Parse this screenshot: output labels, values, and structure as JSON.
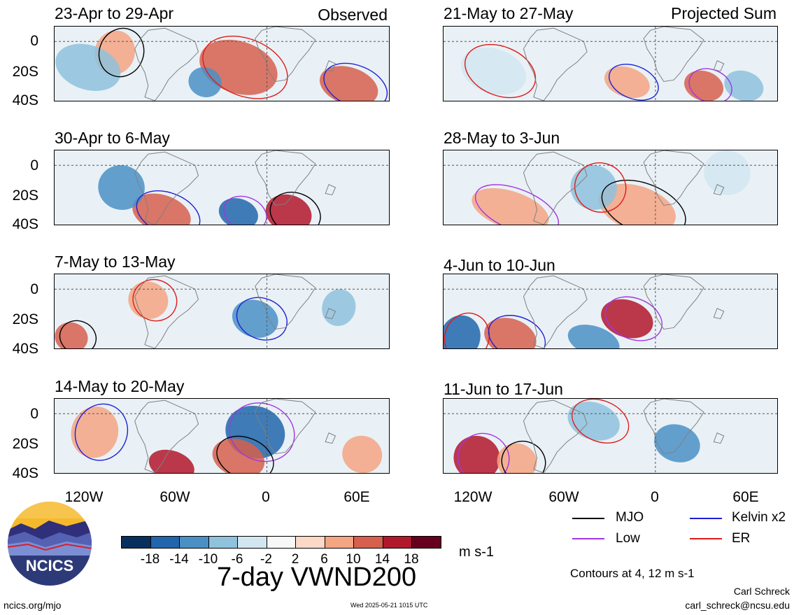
{
  "panels": [
    {
      "title": "23-Apr to 29-Apr",
      "label": "Observed"
    },
    {
      "title": "21-May to 27-May",
      "label": "Projected Sum"
    },
    {
      "title": "30-Apr to 6-May",
      "label": ""
    },
    {
      "title": "28-May to 3-Jun",
      "label": ""
    },
    {
      "title": "7-May to 13-May",
      "label": ""
    },
    {
      "title": "4-Jun to 10-Jun",
      "label": ""
    },
    {
      "title": "14-May to 20-May",
      "label": ""
    },
    {
      "title": "11-Jun to 17-Jun",
      "label": ""
    }
  ],
  "lat_labels": [
    "0",
    "20S",
    "40S"
  ],
  "lon_labels": [
    "120W",
    "60W",
    "0",
    "60E"
  ],
  "colorbar": {
    "colors": [
      "#08305f",
      "#2166ac",
      "#4a90c5",
      "#8ec2dd",
      "#d2e6f0",
      "#f7f7f7",
      "#fbd9c6",
      "#f4a582",
      "#d6604d",
      "#b2182b",
      "#67001f"
    ],
    "ticks": [
      "-18",
      "-14",
      "-10",
      "-6",
      "-2",
      "2",
      "6",
      "10",
      "14",
      "18"
    ],
    "units": "m s-1"
  },
  "legend": [
    {
      "label": "MJO",
      "color": "#000000"
    },
    {
      "label": "Kelvin x2",
      "color": "#1f1fd6"
    },
    {
      "label": "Low",
      "color": "#a335e0"
    },
    {
      "label": "ER",
      "color": "#e01a1a"
    }
  ],
  "contours_note": "Contours at 4, 12 m s-1",
  "main_title": "7-day VWND200",
  "logo_text": "NCICS",
  "footer": {
    "site": "ncics.org/mjo",
    "timestamp": "Wed 2025-05-21 1015 UTC",
    "author": "Carl Schreck",
    "email": "carl_schreck@ncsu.edu"
  }
}
